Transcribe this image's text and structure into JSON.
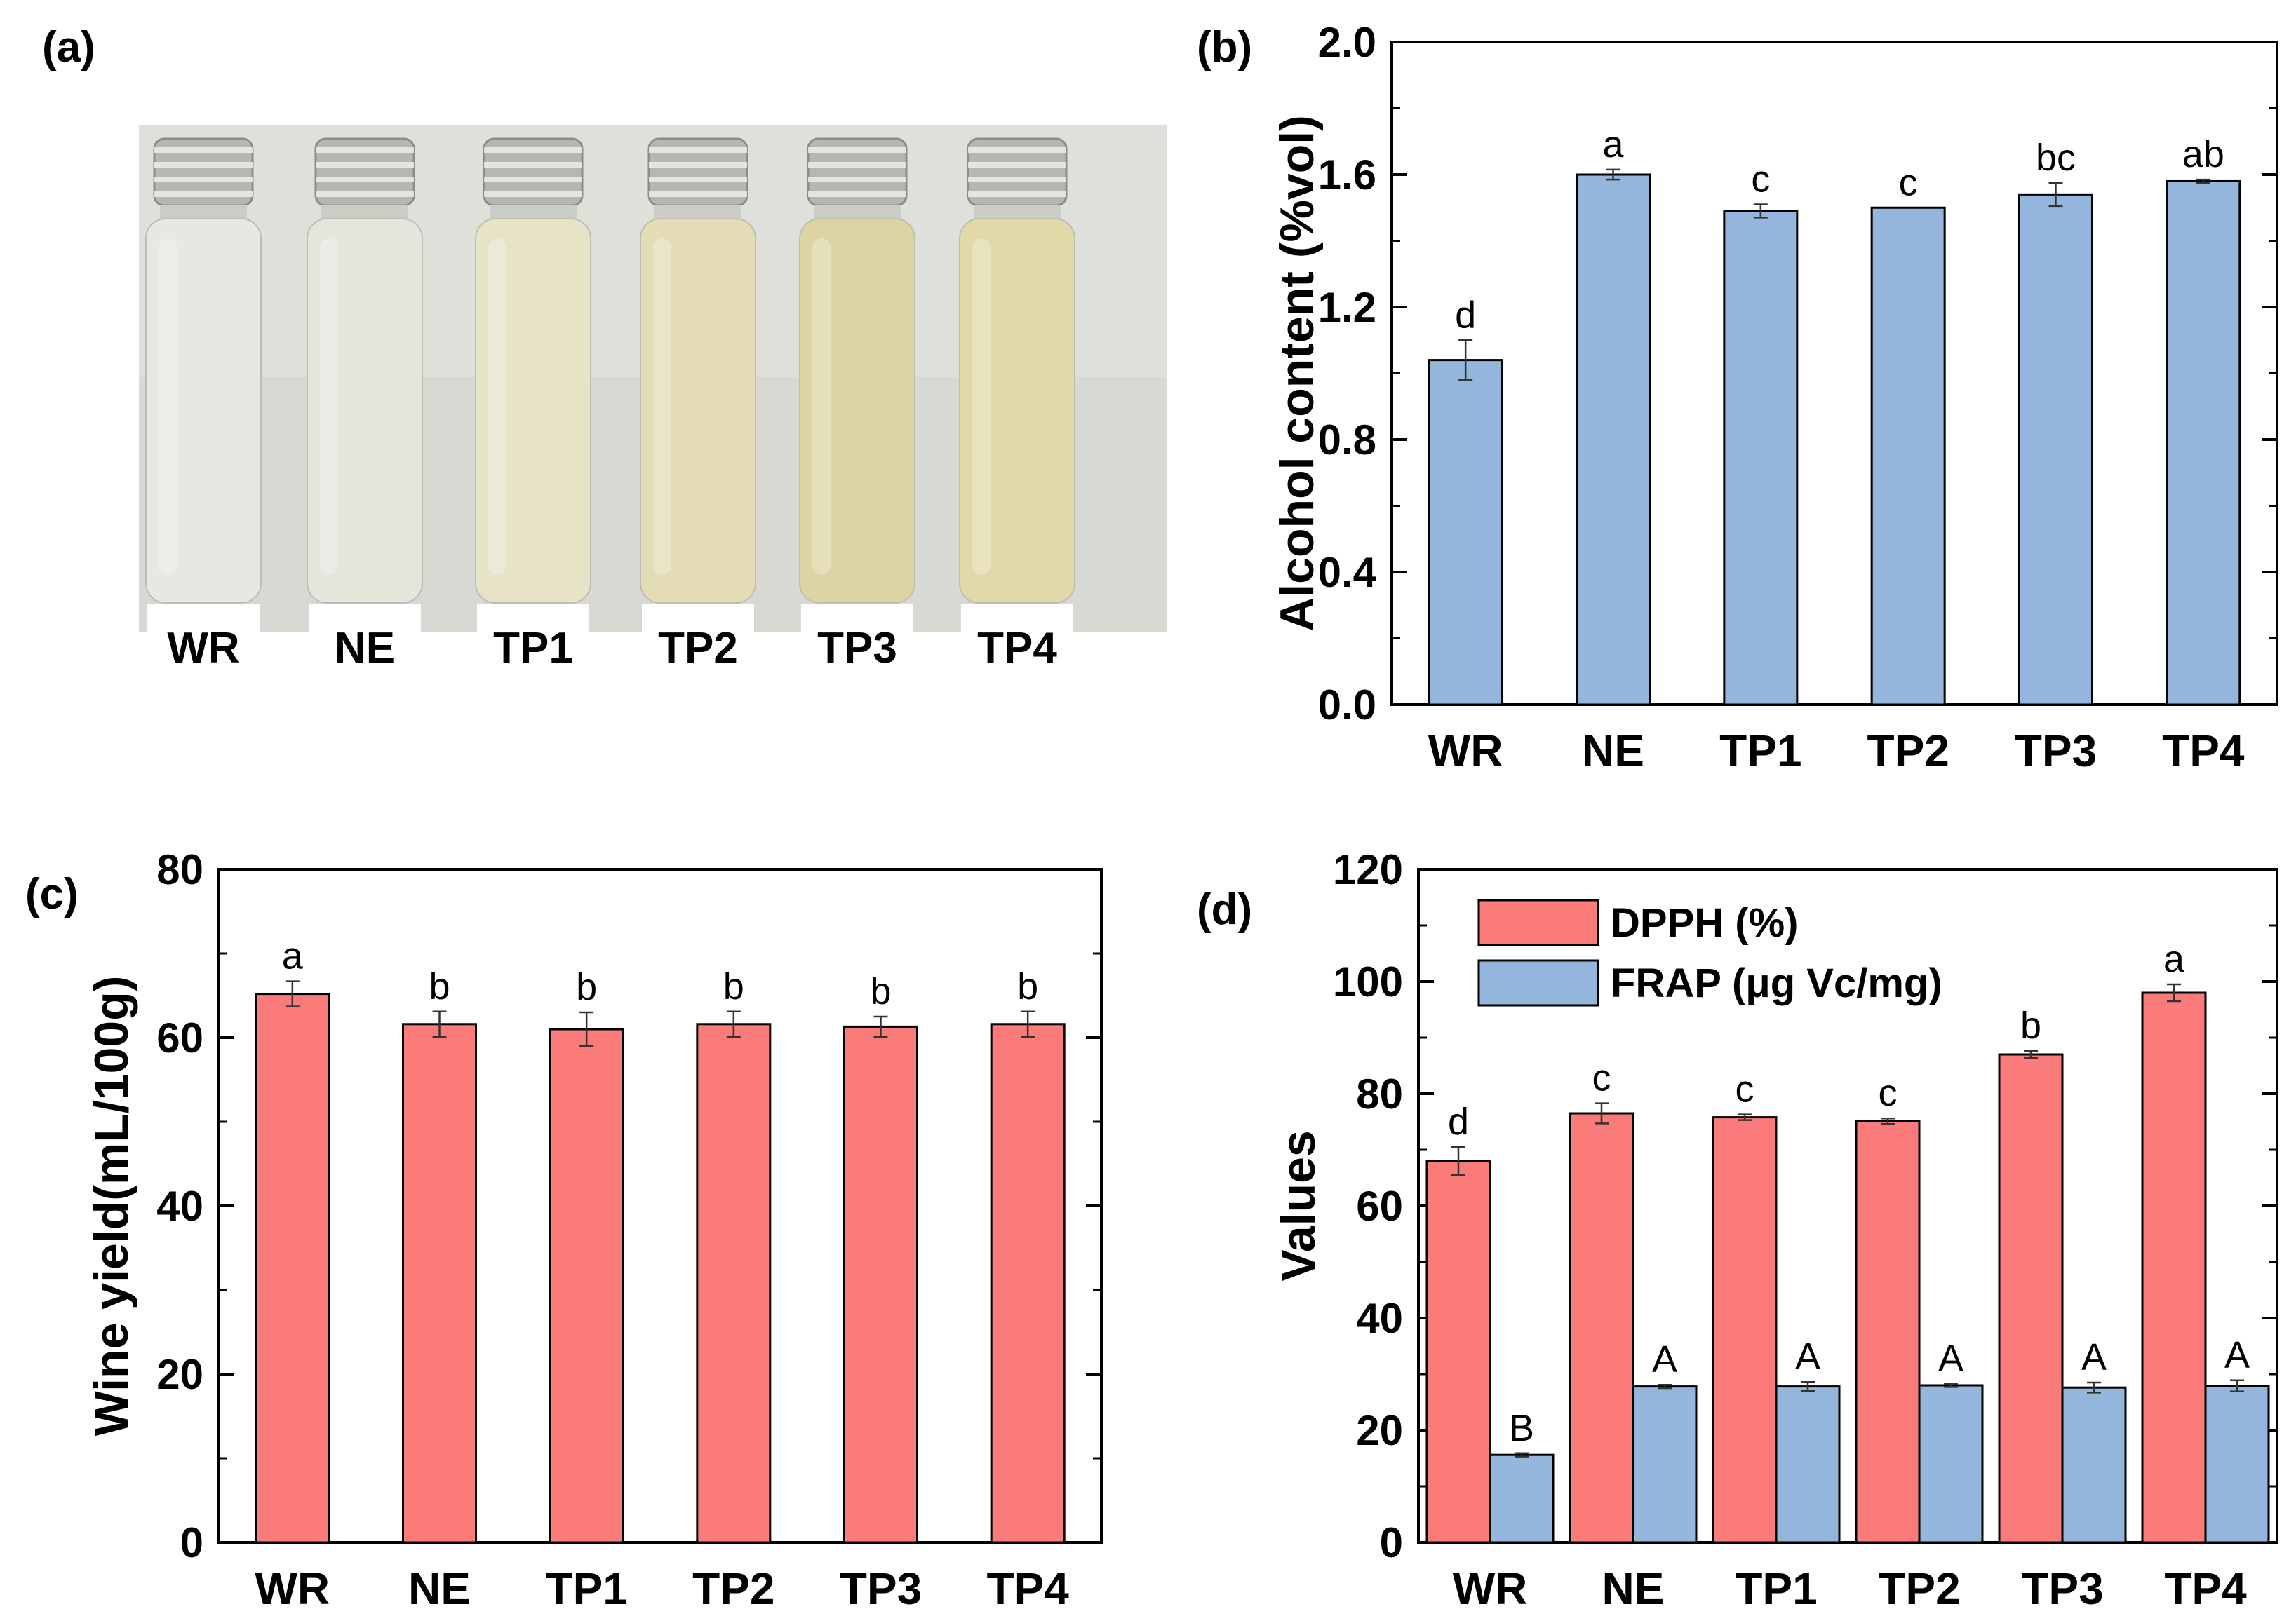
{
  "colors": {
    "red_bar": "#fb7b7b",
    "blue_bar": "#94b5dc",
    "axis": "#000000",
    "photo_bg": "#d8d9d2",
    "cap_metal": "#b7b7b2"
  },
  "panel_a": {
    "letter": "(a)",
    "vials": [
      {
        "label": "WR",
        "liquid": "#e6e9e1"
      },
      {
        "label": "NE",
        "liquid": "#e4e6dc"
      },
      {
        "label": "TP1",
        "liquid": "#e6e3c6"
      },
      {
        "label": "TP2",
        "liquid": "#e3dcb4"
      },
      {
        "label": "TP3",
        "liquid": "#ddd4a3"
      },
      {
        "label": "TP4",
        "liquid": "#e1d9a8"
      }
    ]
  },
  "chart_data": [
    {
      "id": "b",
      "letter": "(b)",
      "type": "bar",
      "categories": [
        "WR",
        "NE",
        "TP1",
        "TP2",
        "TP3",
        "TP4"
      ],
      "series": [
        {
          "name": "Alcohol content",
          "color": "#94b5dc",
          "values": [
            1.04,
            1.6,
            1.49,
            1.5,
            1.54,
            1.58
          ],
          "errors": [
            0.06,
            0.015,
            0.02,
            0.0,
            0.035,
            0.005
          ],
          "sig": [
            "d",
            "a",
            "c",
            "c",
            "bc",
            "ab"
          ]
        }
      ],
      "xlabel": "",
      "ylabel": "Alcohol content (%vol)",
      "ylim": [
        0,
        2.0
      ],
      "yticks": [
        "0.0",
        "0.4",
        "0.8",
        "1.2",
        "1.6",
        "2.0"
      ]
    },
    {
      "id": "c",
      "letter": "(c)",
      "type": "bar",
      "categories": [
        "WR",
        "NE",
        "TP1",
        "TP2",
        "TP3",
        "TP4"
      ],
      "series": [
        {
          "name": "Wine yield",
          "color": "#fb7b7b",
          "values": [
            65.2,
            61.6,
            61.0,
            61.6,
            61.3,
            61.6
          ],
          "errors": [
            1.5,
            1.5,
            2.0,
            1.5,
            1.2,
            1.5
          ],
          "sig": [
            "a",
            "b",
            "b",
            "b",
            "b",
            "b"
          ]
        }
      ],
      "xlabel": "",
      "ylabel": "Wine yield(mL/100g)",
      "ylim": [
        0,
        80
      ],
      "yticks": [
        "0",
        "20",
        "40",
        "60",
        "80"
      ]
    },
    {
      "id": "d",
      "letter": "(d)",
      "type": "bar",
      "categories": [
        "WR",
        "NE",
        "TP1",
        "TP2",
        "TP3",
        "TP4"
      ],
      "series": [
        {
          "name": "DPPH (%)",
          "color": "#fb7b7b",
          "values": [
            68.0,
            76.5,
            75.8,
            75.1,
            87.0,
            98.0
          ],
          "errors": [
            2.5,
            1.8,
            0.5,
            0.5,
            0.6,
            1.5
          ],
          "sig": [
            "d",
            "c",
            "c",
            "c",
            "b",
            "a"
          ]
        },
        {
          "name": "FRAP (μg Vc/mg)",
          "color": "#94b5dc",
          "values": [
            15.6,
            27.8,
            27.8,
            28.0,
            27.6,
            27.9
          ],
          "errors": [
            0.3,
            0.3,
            0.8,
            0.3,
            0.9,
            1.0
          ],
          "sig": [
            "B",
            "A",
            "A",
            "A",
            "A",
            "A"
          ]
        }
      ],
      "xlabel": "",
      "ylabel": "Values",
      "ylim": [
        0,
        120
      ],
      "yticks": [
        "0",
        "20",
        "40",
        "60",
        "80",
        "100",
        "120"
      ],
      "legend_position": "top-left"
    }
  ]
}
